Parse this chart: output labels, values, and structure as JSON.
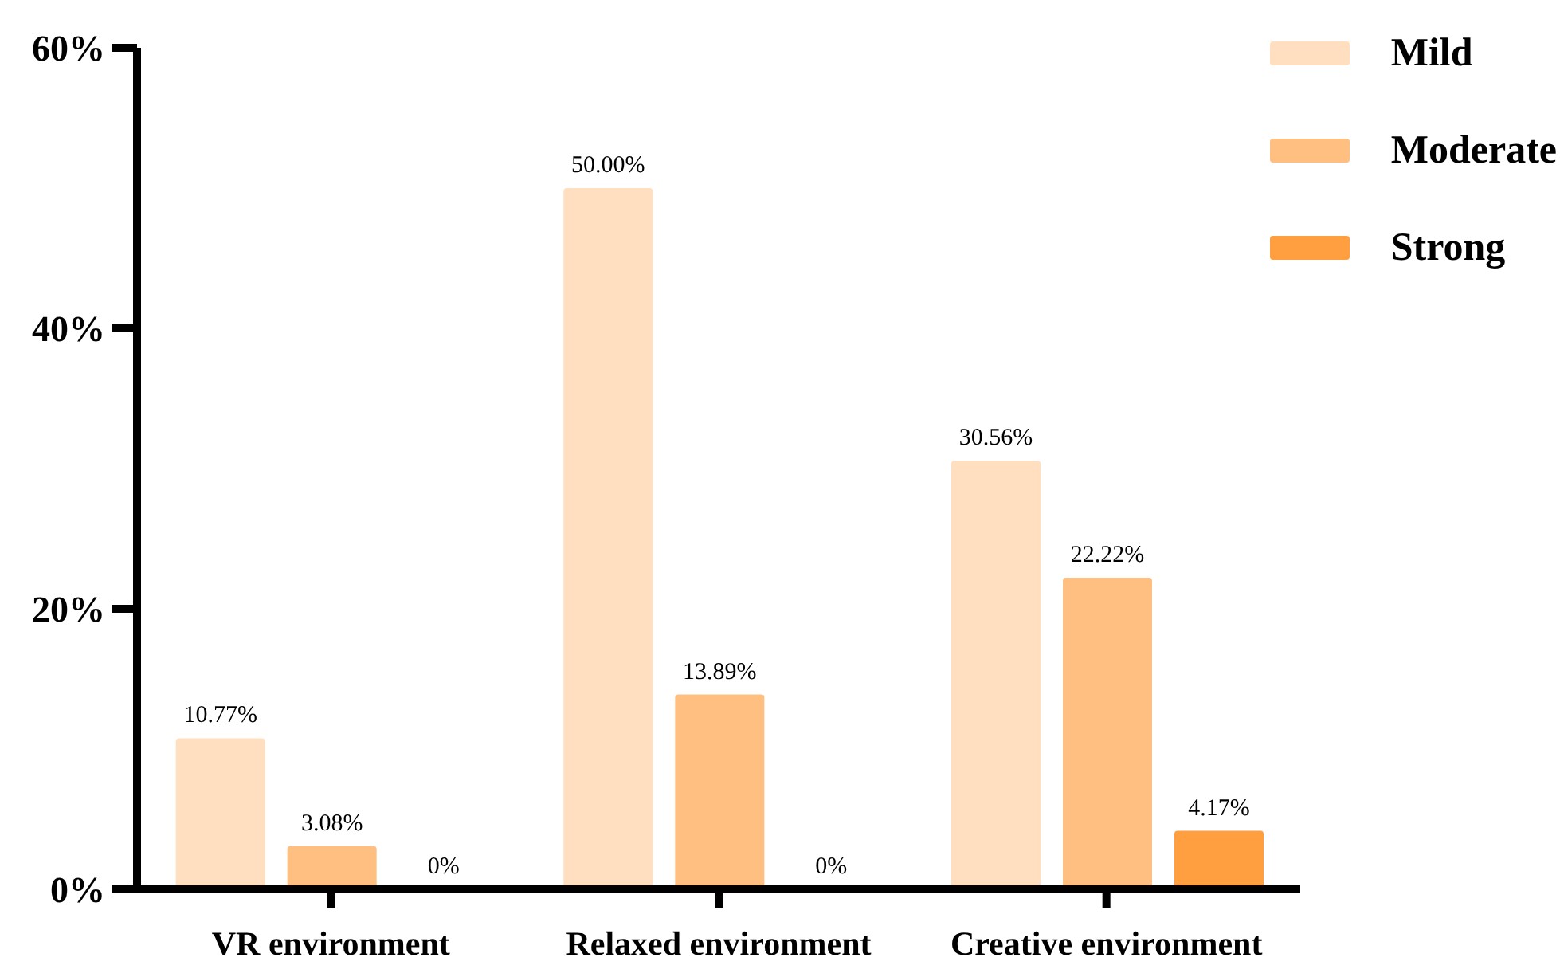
{
  "chart_data": {
    "type": "bar",
    "categories": [
      "VR environment",
      "Relaxed environment",
      "Creative environment"
    ],
    "series": [
      {
        "name": "Mild",
        "color": "#ffdfbf",
        "values": [
          10.77,
          50.0,
          30.56
        ],
        "value_labels": [
          "10.77%",
          "50.00%",
          "30.56%"
        ]
      },
      {
        "name": "Moderate",
        "color": "#ffbf80",
        "values": [
          3.08,
          13.89,
          22.22
        ],
        "value_labels": [
          "3.08%",
          "13.89%",
          "22.22%"
        ]
      },
      {
        "name": "Strong",
        "color": "#ff9f40",
        "values": [
          0,
          0,
          4.17
        ],
        "value_labels": [
          "0%",
          "0%",
          "4.17%"
        ]
      }
    ],
    "ylim": [
      0,
      60
    ],
    "yticks": [
      {
        "value": 0,
        "label": "0%"
      },
      {
        "value": 20,
        "label": "20%"
      },
      {
        "value": 40,
        "label": "40%"
      },
      {
        "value": 60,
        "label": "60%"
      }
    ],
    "grid": false,
    "legend": "top right"
  }
}
